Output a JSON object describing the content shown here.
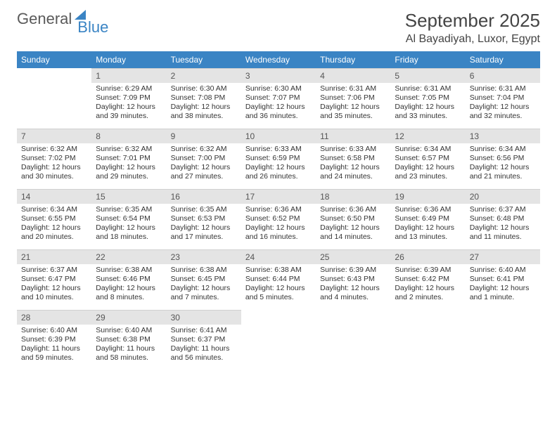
{
  "branding": {
    "word1": "General",
    "word2": "Blue"
  },
  "title": {
    "month": "September 2025",
    "location": "Al Bayadiyah, Luxor, Egypt"
  },
  "dow": [
    "Sunday",
    "Monday",
    "Tuesday",
    "Wednesday",
    "Thursday",
    "Friday",
    "Saturday"
  ],
  "colors": {
    "header_bg": "#3a84c4",
    "header_fg": "#ffffff",
    "daynum_bg": "#e4e4e4",
    "text": "#333333",
    "logo_gray": "#5a5a5a",
    "logo_blue": "#3a84c4"
  },
  "grid": [
    [
      null,
      {
        "n": "1",
        "sr": "6:29 AM",
        "ss": "7:09 PM",
        "dl": "12 hours and 39 minutes."
      },
      {
        "n": "2",
        "sr": "6:30 AM",
        "ss": "7:08 PM",
        "dl": "12 hours and 38 minutes."
      },
      {
        "n": "3",
        "sr": "6:30 AM",
        "ss": "7:07 PM",
        "dl": "12 hours and 36 minutes."
      },
      {
        "n": "4",
        "sr": "6:31 AM",
        "ss": "7:06 PM",
        "dl": "12 hours and 35 minutes."
      },
      {
        "n": "5",
        "sr": "6:31 AM",
        "ss": "7:05 PM",
        "dl": "12 hours and 33 minutes."
      },
      {
        "n": "6",
        "sr": "6:31 AM",
        "ss": "7:04 PM",
        "dl": "12 hours and 32 minutes."
      }
    ],
    [
      {
        "n": "7",
        "sr": "6:32 AM",
        "ss": "7:02 PM",
        "dl": "12 hours and 30 minutes."
      },
      {
        "n": "8",
        "sr": "6:32 AM",
        "ss": "7:01 PM",
        "dl": "12 hours and 29 minutes."
      },
      {
        "n": "9",
        "sr": "6:32 AM",
        "ss": "7:00 PM",
        "dl": "12 hours and 27 minutes."
      },
      {
        "n": "10",
        "sr": "6:33 AM",
        "ss": "6:59 PM",
        "dl": "12 hours and 26 minutes."
      },
      {
        "n": "11",
        "sr": "6:33 AM",
        "ss": "6:58 PM",
        "dl": "12 hours and 24 minutes."
      },
      {
        "n": "12",
        "sr": "6:34 AM",
        "ss": "6:57 PM",
        "dl": "12 hours and 23 minutes."
      },
      {
        "n": "13",
        "sr": "6:34 AM",
        "ss": "6:56 PM",
        "dl": "12 hours and 21 minutes."
      }
    ],
    [
      {
        "n": "14",
        "sr": "6:34 AM",
        "ss": "6:55 PM",
        "dl": "12 hours and 20 minutes."
      },
      {
        "n": "15",
        "sr": "6:35 AM",
        "ss": "6:54 PM",
        "dl": "12 hours and 18 minutes."
      },
      {
        "n": "16",
        "sr": "6:35 AM",
        "ss": "6:53 PM",
        "dl": "12 hours and 17 minutes."
      },
      {
        "n": "17",
        "sr": "6:36 AM",
        "ss": "6:52 PM",
        "dl": "12 hours and 16 minutes."
      },
      {
        "n": "18",
        "sr": "6:36 AM",
        "ss": "6:50 PM",
        "dl": "12 hours and 14 minutes."
      },
      {
        "n": "19",
        "sr": "6:36 AM",
        "ss": "6:49 PM",
        "dl": "12 hours and 13 minutes."
      },
      {
        "n": "20",
        "sr": "6:37 AM",
        "ss": "6:48 PM",
        "dl": "12 hours and 11 minutes."
      }
    ],
    [
      {
        "n": "21",
        "sr": "6:37 AM",
        "ss": "6:47 PM",
        "dl": "12 hours and 10 minutes."
      },
      {
        "n": "22",
        "sr": "6:38 AM",
        "ss": "6:46 PM",
        "dl": "12 hours and 8 minutes."
      },
      {
        "n": "23",
        "sr": "6:38 AM",
        "ss": "6:45 PM",
        "dl": "12 hours and 7 minutes."
      },
      {
        "n": "24",
        "sr": "6:38 AM",
        "ss": "6:44 PM",
        "dl": "12 hours and 5 minutes."
      },
      {
        "n": "25",
        "sr": "6:39 AM",
        "ss": "6:43 PM",
        "dl": "12 hours and 4 minutes."
      },
      {
        "n": "26",
        "sr": "6:39 AM",
        "ss": "6:42 PM",
        "dl": "12 hours and 2 minutes."
      },
      {
        "n": "27",
        "sr": "6:40 AM",
        "ss": "6:41 PM",
        "dl": "12 hours and 1 minute."
      }
    ],
    [
      {
        "n": "28",
        "sr": "6:40 AM",
        "ss": "6:39 PM",
        "dl": "11 hours and 59 minutes."
      },
      {
        "n": "29",
        "sr": "6:40 AM",
        "ss": "6:38 PM",
        "dl": "11 hours and 58 minutes."
      },
      {
        "n": "30",
        "sr": "6:41 AM",
        "ss": "6:37 PM",
        "dl": "11 hours and 56 minutes."
      },
      null,
      null,
      null,
      null
    ]
  ],
  "labels": {
    "sunrise": "Sunrise:",
    "sunset": "Sunset:",
    "daylight": "Daylight:"
  }
}
